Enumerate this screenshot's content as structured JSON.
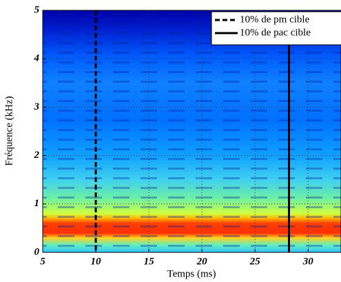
{
  "chart_data": {
    "type": "spectrogram",
    "xlabel": "Temps (ms)",
    "ylabel": "Fréquence (kHz)",
    "xlim": [
      5,
      33.1
    ],
    "xticks": [
      5,
      10,
      15,
      20,
      25,
      30
    ],
    "ylim": [
      0,
      5
    ],
    "yticks": [
      0,
      1,
      2,
      3,
      4,
      5
    ],
    "grid": true,
    "legend": "upper right",
    "markers": [
      {
        "name": "10% de pm cible",
        "x": 10,
        "style": "dashed",
        "color": "#000000"
      },
      {
        "name": "10% de pac cible",
        "x": 28.2,
        "style": "solid",
        "color": "#000000"
      }
    ]
  }
}
